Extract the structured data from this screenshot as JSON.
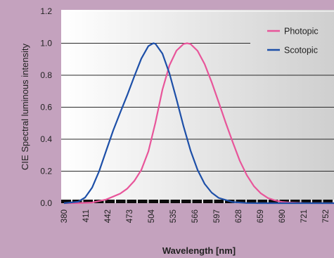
{
  "chart_data": {
    "type": "line",
    "title": "",
    "xlabel": "Wavelength [nm]",
    "ylabel": "CIE Spectral luminous intensity",
    "x_ticks": [
      380,
      411,
      442,
      473,
      504,
      535,
      566,
      597,
      628,
      659,
      690,
      721,
      752
    ],
    "y_ticks": [
      "0.0",
      "0.2",
      "0.4",
      "0.6",
      "0.8",
      "1.0",
      "1.2"
    ],
    "ylim": [
      0,
      1.2
    ],
    "xlim": [
      380,
      770
    ],
    "grid": true,
    "legend_position": "top-right",
    "series": [
      {
        "name": "Photopic",
        "color": "#e8559a",
        "x": [
          380,
          400,
          420,
          440,
          460,
          470,
          480,
          490,
          500,
          510,
          520,
          530,
          540,
          550,
          555,
          560,
          570,
          580,
          590,
          600,
          610,
          620,
          630,
          640,
          650,
          660,
          670,
          680,
          690,
          700,
          720,
          740,
          770
        ],
        "y": [
          0.0,
          0.0004,
          0.004,
          0.023,
          0.06,
          0.091,
          0.139,
          0.208,
          0.323,
          0.503,
          0.71,
          0.862,
          0.954,
          0.995,
          1.0,
          0.995,
          0.952,
          0.87,
          0.757,
          0.631,
          0.503,
          0.381,
          0.265,
          0.175,
          0.107,
          0.061,
          0.032,
          0.017,
          0.008,
          0.004,
          0.001,
          0.0002,
          0.0
        ]
      },
      {
        "name": "Scotopic",
        "color": "#1d4fa8",
        "x": [
          380,
          400,
          410,
          420,
          430,
          440,
          450,
          460,
          470,
          480,
          490,
          500,
          507,
          510,
          520,
          530,
          540,
          550,
          560,
          570,
          580,
          590,
          600,
          620,
          640,
          660,
          700,
          770
        ],
        "y": [
          0.0,
          0.009,
          0.035,
          0.097,
          0.2,
          0.328,
          0.455,
          0.567,
          0.676,
          0.793,
          0.904,
          0.982,
          1.0,
          0.997,
          0.935,
          0.811,
          0.65,
          0.481,
          0.329,
          0.208,
          0.121,
          0.066,
          0.033,
          0.007,
          0.001,
          0.0002,
          0.0,
          0.0
        ]
      }
    ]
  }
}
